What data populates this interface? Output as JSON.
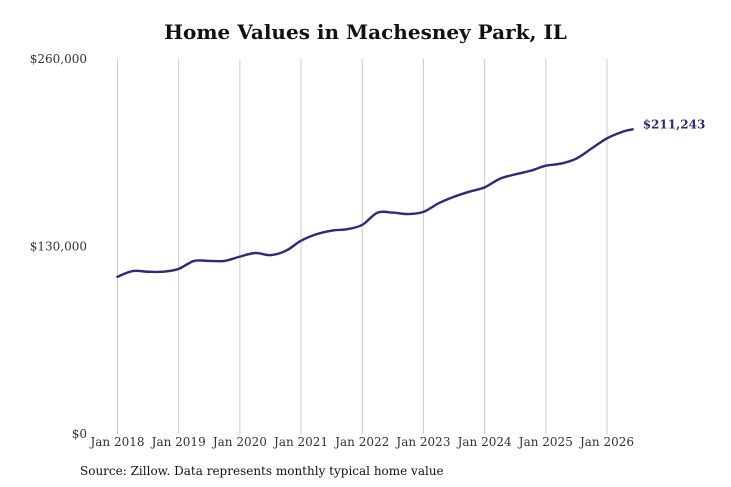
{
  "chart_data": {
    "type": "line",
    "title": "Home Values in Machesney Park, IL",
    "source": "Source: Zillow. Data represents monthly typical home value",
    "xlabel": "",
    "ylabel": "",
    "ylim": [
      0,
      260000
    ],
    "yticks": [
      0,
      130000,
      260000
    ],
    "ytick_labels": [
      "$0",
      "$130,000",
      "$260,000"
    ],
    "xticks": [
      2018,
      2019,
      2020,
      2021,
      2022,
      2023,
      2024,
      2025,
      2026
    ],
    "xtick_labels": [
      "Jan 2018",
      "Jan 2019",
      "Jan 2020",
      "Jan 2021",
      "Jan 2022",
      "Jan 2023",
      "Jan 2024",
      "Jan 2025",
      "Jan 2026"
    ],
    "grid": "vertical",
    "line_color": "#2b2a7c",
    "end_label": "$211,243",
    "series": [
      {
        "x": [
          2018.0,
          2018.25,
          2018.5,
          2018.75,
          2019.0,
          2019.25,
          2019.5,
          2019.75,
          2020.0,
          2020.25,
          2020.5,
          2020.75,
          2021.0,
          2021.25,
          2021.5,
          2021.75,
          2022.0,
          2022.25,
          2022.5,
          2022.75,
          2023.0,
          2023.25,
          2023.5,
          2023.75,
          2024.0,
          2024.25,
          2024.5,
          2024.75,
          2025.0,
          2025.25,
          2025.5,
          2025.75,
          2026.0,
          2026.25,
          2026.42
        ],
        "y": [
          109000,
          113000,
          112500,
          112500,
          114500,
          120000,
          120000,
          120000,
          123000,
          125500,
          124000,
          127000,
          134000,
          138500,
          141000,
          142000,
          145000,
          153500,
          153500,
          152500,
          154000,
          160000,
          164500,
          168000,
          171000,
          177000,
          180000,
          182500,
          186000,
          187500,
          191000,
          198000,
          205000,
          209500,
          211243
        ]
      }
    ]
  }
}
